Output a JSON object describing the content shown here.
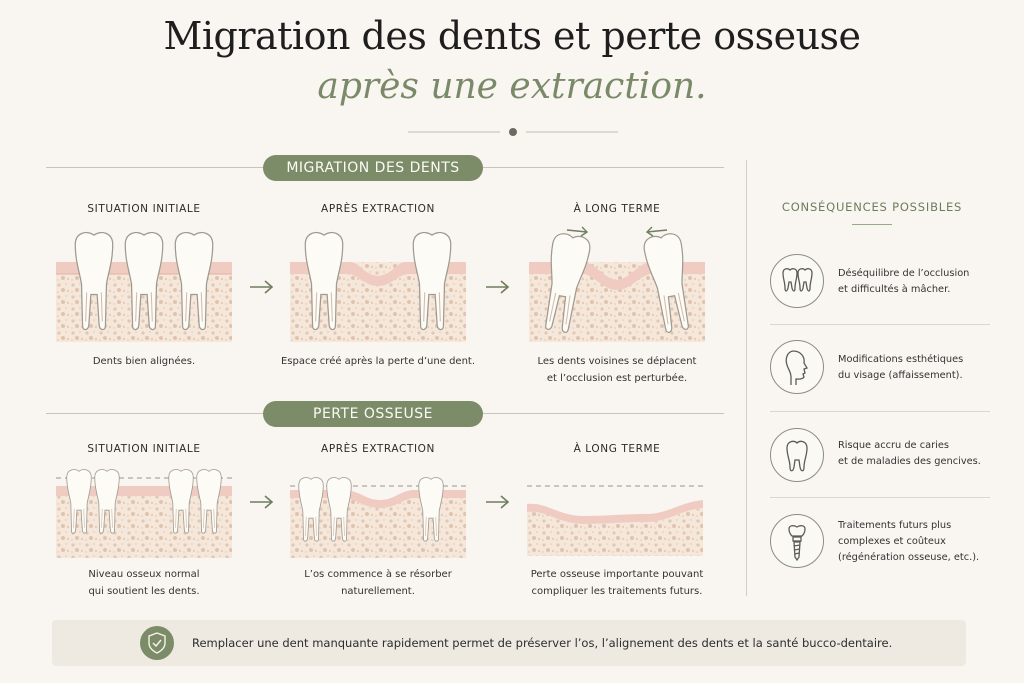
{
  "header": {
    "title": "Migration des dents et perte osseuse",
    "subtitle": "après une extraction."
  },
  "colors": {
    "accent_green": "#7c8b68",
    "gum": "#f1cfc6",
    "bone": "#f4e6d8",
    "tooth": "#fdfbf5"
  },
  "migration": {
    "label": "MIGRATION DES DENTS",
    "steps": [
      {
        "heading": "SITUATION INITIALE",
        "caption_lines": [
          "Dents bien alignées."
        ]
      },
      {
        "heading": "APRÈS EXTRACTION",
        "caption_lines": [
          "Espace créé après la perte d’une dent."
        ]
      },
      {
        "heading": "À LONG TERME",
        "caption_lines": [
          "Les dents voisines se déplacent",
          "et l’occlusion est perturbée."
        ]
      }
    ]
  },
  "bone_loss": {
    "label": "PERTE OSSEUSE",
    "steps": [
      {
        "heading": "SITUATION INITIALE",
        "caption_lines": [
          "Niveau osseux normal",
          "qui soutient les dents."
        ]
      },
      {
        "heading": "APRÈS EXTRACTION",
        "caption_lines": [
          "L’os commence à se résorber",
          "naturellement."
        ]
      },
      {
        "heading": "À LONG TERME",
        "caption_lines": [
          "Perte osseuse importante pouvant",
          "compliquer les traitements futurs."
        ]
      }
    ]
  },
  "consequences": {
    "title": "CONSÉQUENCES POSSIBLES",
    "items": [
      {
        "icon": "two-teeth-icon",
        "lines": [
          "Déséquilibre de l’occlusion",
          "et difficultés à mâcher."
        ]
      },
      {
        "icon": "face-profile-icon",
        "lines": [
          "Modifications esthétiques",
          "du visage (affaissement)."
        ]
      },
      {
        "icon": "tooth-icon",
        "lines": [
          "Risque accru de caries",
          "et de maladies des gencives."
        ]
      },
      {
        "icon": "dental-implant-icon",
        "lines": [
          "Traitements futurs plus",
          "complexes et coûteux",
          "(régénération osseuse, etc.)."
        ]
      }
    ]
  },
  "banner": {
    "icon": "shield-check-icon",
    "text": "Remplacer une dent manquante rapidement permet de préserver l’os, l’alignement des dents et la santé bucco-dentaire."
  }
}
